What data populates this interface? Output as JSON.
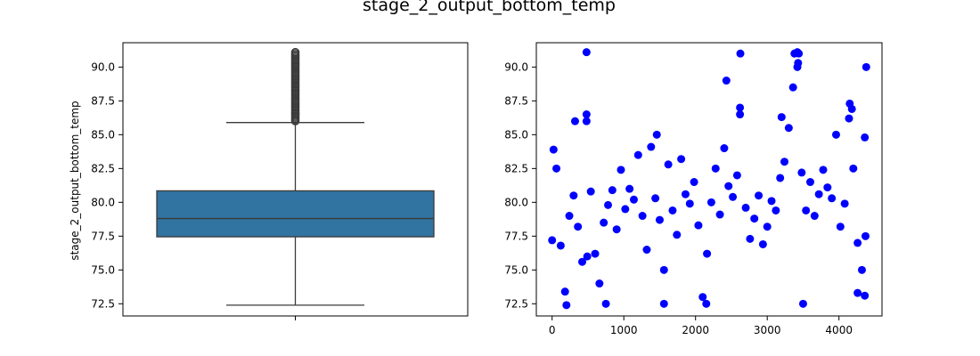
{
  "figure": {
    "title": "stage_2_output_bottom_temp"
  },
  "colors": {
    "box_fill": "#3274a1",
    "box_line": "#3b3b3b",
    "scatter": "#0000ff",
    "axes": "#000000"
  },
  "chart_data": [
    {
      "type": "box",
      "title": "",
      "xlabel": "",
      "ylabel": "stage_2_output_bottom_temp",
      "ylim": [
        71.6,
        91.8
      ],
      "yticks": [
        "72.5",
        "75.0",
        "77.5",
        "80.0",
        "82.5",
        "85.0",
        "87.5",
        "90.0"
      ],
      "series": [
        {
          "min": 72.4,
          "q1": 77.45,
          "median": 78.8,
          "q3": 80.85,
          "max": 85.9,
          "outliers_range": [
            86.0,
            91.1
          ]
        }
      ]
    },
    {
      "type": "scatter",
      "title": "",
      "xlabel": "",
      "ylabel": "",
      "xlim": [
        -220,
        4600
      ],
      "ylim": [
        71.6,
        91.8
      ],
      "xticks": [
        "0",
        "1000",
        "2000",
        "3000",
        "4000"
      ],
      "yticks": [
        "72.5",
        "75.0",
        "77.5",
        "80.0",
        "82.5",
        "85.0",
        "87.5",
        "90.0"
      ],
      "series": [
        {
          "x": [
            0,
            60,
            120,
            180,
            240,
            300,
            360,
            420,
            480,
            540,
            600,
            660,
            720,
            780,
            840,
            900,
            960,
            1020,
            1080,
            1140,
            1200,
            1260,
            1320,
            1380,
            1440,
            1500,
            1560,
            1620,
            1680,
            1740,
            1800,
            1860,
            1920,
            1980,
            2040,
            2100,
            2160,
            2220,
            2280,
            2340,
            2400,
            2460,
            2520,
            2580,
            2620,
            2700,
            2760,
            2820,
            2880,
            2940,
            3000,
            3060,
            3120,
            3180,
            3240,
            3300,
            3360,
            3420,
            3480,
            3540,
            3600,
            3660,
            3720,
            3780,
            3840,
            3900,
            3960,
            4020,
            4080,
            4140,
            4200,
            4260,
            4320,
            4360,
            4380,
            20,
            200,
            480,
            490,
            750,
            1560,
            2150,
            2625,
            3420,
            3440,
            3500,
            4360,
            4370,
            320,
            480,
            1460,
            2430,
            2620,
            3200,
            3380,
            3430,
            4150,
            4180,
            4260
          ],
          "y": [
            77.2,
            82.5,
            76.8,
            73.4,
            79.0,
            80.5,
            78.2,
            75.6,
            86.0,
            80.8,
            76.2,
            74.0,
            78.5,
            79.8,
            80.9,
            78.0,
            82.4,
            79.5,
            81.0,
            80.2,
            83.5,
            79.0,
            76.5,
            84.1,
            80.3,
            78.7,
            75.0,
            82.8,
            79.4,
            77.6,
            83.2,
            80.6,
            79.9,
            81.5,
            78.3,
            73.0,
            76.2,
            80.0,
            82.5,
            79.1,
            84.0,
            81.2,
            80.4,
            82.0,
            86.5,
            79.6,
            77.3,
            78.8,
            80.5,
            76.9,
            78.2,
            80.1,
            79.4,
            81.8,
            83.0,
            85.5,
            88.5,
            90.0,
            82.2,
            79.4,
            81.5,
            79.0,
            80.6,
            82.4,
            81.1,
            80.3,
            85.0,
            78.2,
            79.9,
            86.2,
            82.5,
            77.0,
            75.0,
            84.8,
            90.0,
            83.9,
            72.4,
            91.1,
            76.0,
            72.5,
            72.5,
            72.5,
            91.0,
            91.1,
            91.0,
            72.5,
            73.1,
            77.5,
            86.0,
            86.5,
            85.0,
            89.0,
            87.0,
            86.3,
            91.0,
            90.3,
            87.3,
            86.9,
            73.3
          ]
        }
      ]
    }
  ]
}
